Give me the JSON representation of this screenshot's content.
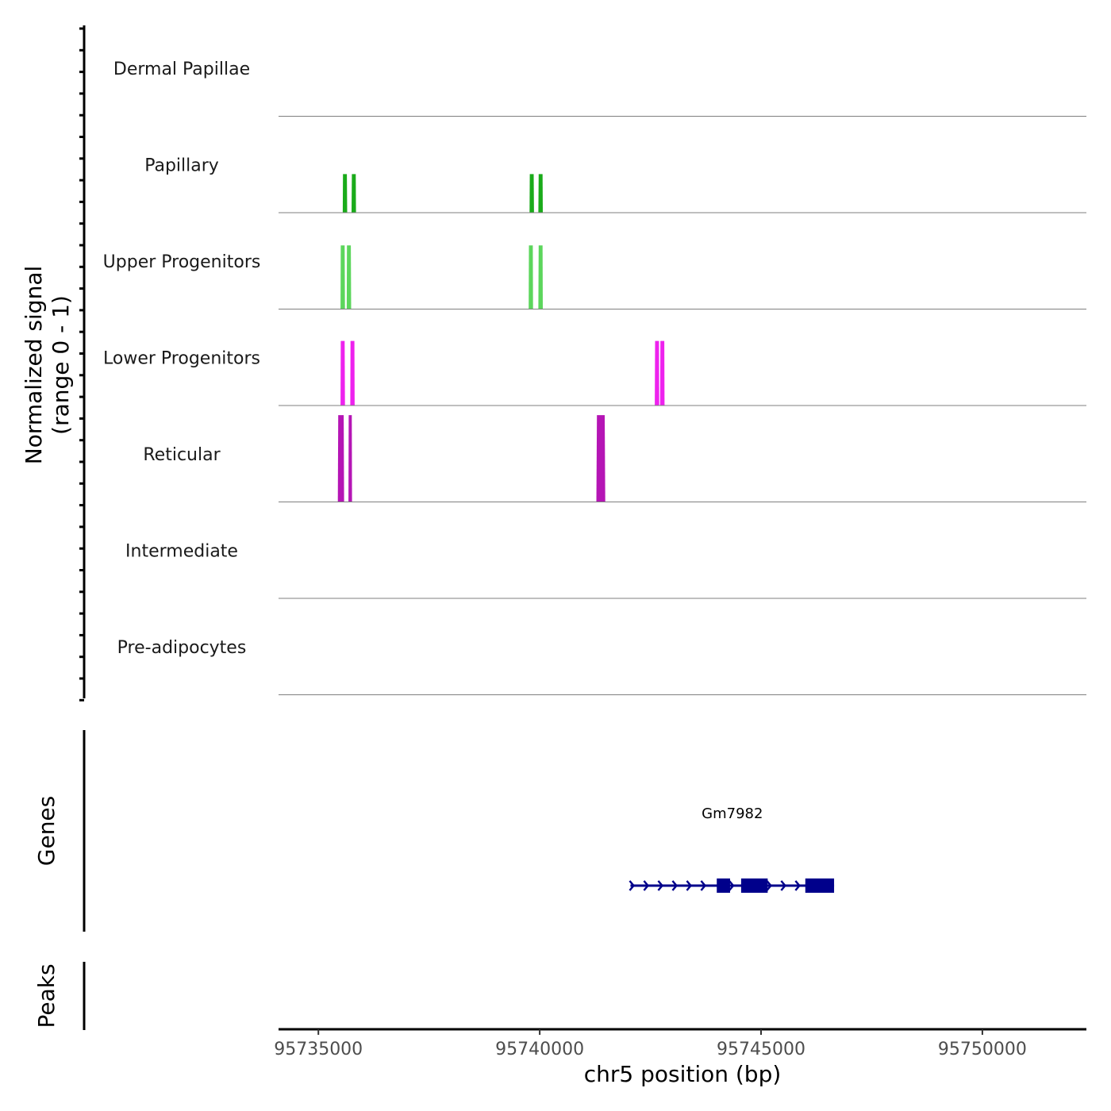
{
  "chart_data": {
    "type": "coverage_track",
    "region": {
      "chromosome": "chr5",
      "start": 95734100,
      "end": 95752350
    },
    "y_axis_title_line1": "Normalized signal",
    "y_axis_title_line2": "(range 0 - 1)",
    "x_axis_title": "chr5 position (bp)",
    "x_ticks": [
      {
        "value": 95735000,
        "label": "95735000"
      },
      {
        "value": 95740000,
        "label": "95740000"
      },
      {
        "value": 95745000,
        "label": "95745000"
      },
      {
        "value": 95750000,
        "label": "95750000"
      }
    ],
    "tracks": [
      {
        "name": "Dermal Papillae",
        "color": "#1f8b1f",
        "peaks": []
      },
      {
        "name": "Papillary",
        "color": "#1aab1a",
        "peaks": [
          {
            "start": 95735550,
            "end": 95735650,
            "height": 0.4
          },
          {
            "start": 95735750,
            "end": 95735850,
            "height": 0.4
          },
          {
            "start": 95739770,
            "end": 95739870,
            "height": 0.4
          },
          {
            "start": 95739970,
            "end": 95740070,
            "height": 0.4
          }
        ]
      },
      {
        "name": "Upper Progenitors",
        "color": "#5cd65c",
        "peaks": [
          {
            "start": 95735500,
            "end": 95735600,
            "height": 0.66
          },
          {
            "start": 95735640,
            "end": 95735740,
            "height": 0.66
          },
          {
            "start": 95739750,
            "end": 95739850,
            "height": 0.66
          },
          {
            "start": 95739970,
            "end": 95740070,
            "height": 0.66
          }
        ]
      },
      {
        "name": "Lower Progenitors",
        "color": "#ee22ee",
        "peaks": [
          {
            "start": 95735500,
            "end": 95735600,
            "height": 0.67
          },
          {
            "start": 95735720,
            "end": 95735820,
            "height": 0.67
          },
          {
            "start": 95742600,
            "end": 95742700,
            "height": 0.67
          },
          {
            "start": 95742720,
            "end": 95742820,
            "height": 0.67
          }
        ]
      },
      {
        "name": "Reticular",
        "color": "#b515b5",
        "peaks": [
          {
            "start": 95735440,
            "end": 95735580,
            "height": 0.9
          },
          {
            "start": 95735680,
            "end": 95735760,
            "height": 0.9
          },
          {
            "start": 95741280,
            "end": 95741480,
            "height": 0.9
          }
        ]
      },
      {
        "name": "Intermediate",
        "color": "#8b4513",
        "peaks": []
      },
      {
        "name": "Pre-adipocytes",
        "color": "#cc6600",
        "peaks": []
      }
    ],
    "genes_label": "Genes",
    "peaks_label": "Peaks",
    "genes": [
      {
        "name": "Gm7982",
        "strand": "+",
        "start": 95742050,
        "end": 95746650,
        "color": "#00008b",
        "exons": [
          {
            "start": 95744000,
            "end": 95744300
          },
          {
            "start": 95744550,
            "end": 95745150
          },
          {
            "start": 95746000,
            "end": 95746650
          }
        ]
      }
    ]
  }
}
